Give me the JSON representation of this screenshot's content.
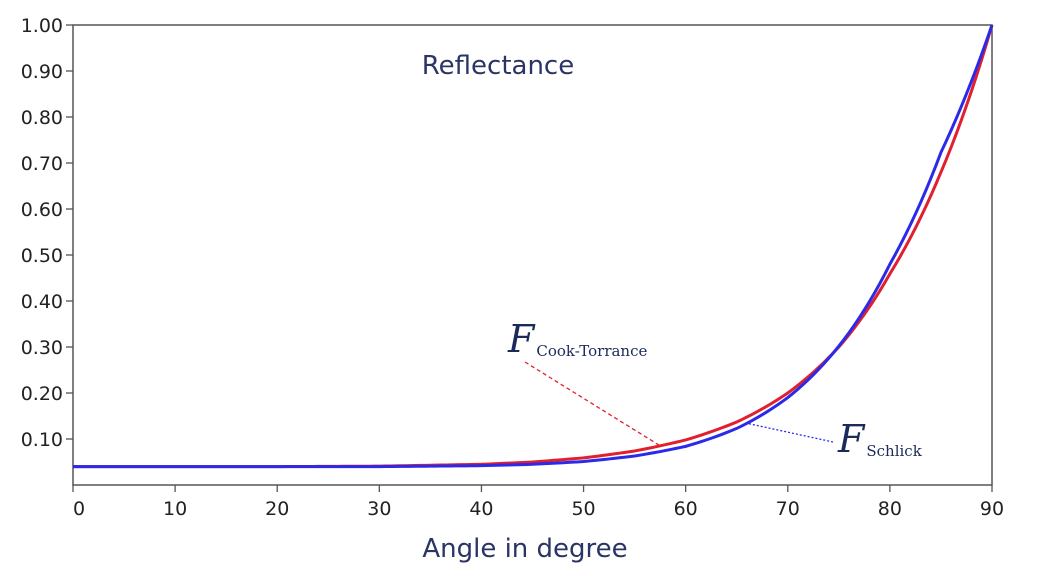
{
  "chart_data": {
    "type": "line",
    "title": "Reflectance",
    "xlabel": "Angle in degree",
    "ylabel": "",
    "xlim": [
      0,
      90
    ],
    "ylim": [
      0,
      1.0
    ],
    "x_ticks": [
      "0",
      "10",
      "20",
      "30",
      "40",
      "50",
      "60",
      "70",
      "80",
      "90"
    ],
    "y_ticks": [
      "0.10",
      "0.20",
      "0.30",
      "0.40",
      "0.50",
      "0.60",
      "0.70",
      "0.80",
      "0.90",
      "1.00"
    ],
    "grid": false,
    "x": [
      0,
      10,
      20,
      30,
      40,
      45,
      50,
      55,
      60,
      65,
      70,
      75,
      80,
      85,
      90
    ],
    "series": [
      {
        "name": "F Cook-Torrance",
        "color": "#e0202e",
        "values": [
          0.04,
          0.04,
          0.04,
          0.041,
          0.045,
          0.05,
          0.059,
          0.074,
          0.098,
          0.137,
          0.2,
          0.3,
          0.459,
          0.68,
          1.0
        ]
      },
      {
        "name": "F Schlick",
        "color": "#2a2ae8",
        "values": [
          0.04,
          0.04,
          0.04,
          0.04,
          0.042,
          0.045,
          0.051,
          0.063,
          0.084,
          0.123,
          0.19,
          0.302,
          0.48,
          0.723,
          1.0
        ]
      }
    ],
    "annotations": [
      {
        "main": "F",
        "sub": "Cook-Torrance",
        "points_to": "F Cook-Torrance",
        "at_x": 57.5
      },
      {
        "main": "F",
        "sub": "Schlick",
        "points_to": "F Schlick",
        "at_x": 66
      }
    ]
  }
}
